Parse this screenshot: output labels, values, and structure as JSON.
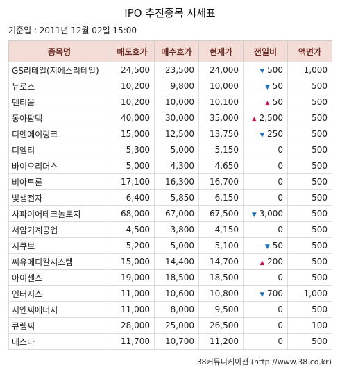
{
  "title": "IPO 추진종목 시세표",
  "date_line": "기준일 : 2011년 12월 02일 15:00",
  "headers": [
    "종목명",
    "매도호가",
    "매수호가",
    "현재가",
    "전일비",
    "액면가"
  ],
  "rows": [
    {
      "name": "GS리테일(지에스리테일)",
      "ask": "24,500",
      "bid": "23,500",
      "price": "24,000",
      "dir": "down",
      "change": "500",
      "par": "1,000"
    },
    {
      "name": "뉴로스",
      "ask": "10,200",
      "bid": "9,800",
      "price": "10,000",
      "dir": "down",
      "change": "50",
      "par": "500"
    },
    {
      "name": "덴티움",
      "ask": "10,200",
      "bid": "10,000",
      "price": "10,100",
      "dir": "up",
      "change": "50",
      "par": "500"
    },
    {
      "name": "동아팜텍",
      "ask": "40,000",
      "bid": "30,000",
      "price": "35,000",
      "dir": "up",
      "change": "2,500",
      "par": "500"
    },
    {
      "name": "디엔에이링크",
      "ask": "15,000",
      "bid": "12,500",
      "price": "13,750",
      "dir": "down",
      "change": "250",
      "par": "500"
    },
    {
      "name": "디엠티",
      "ask": "5,300",
      "bid": "5,000",
      "price": "5,150",
      "dir": "",
      "change": "0",
      "par": "500"
    },
    {
      "name": "바이오리더스",
      "ask": "5,000",
      "bid": "4,300",
      "price": "4,650",
      "dir": "",
      "change": "0",
      "par": "500"
    },
    {
      "name": "비아트론",
      "ask": "17,100",
      "bid": "16,300",
      "price": "16,700",
      "dir": "",
      "change": "0",
      "par": "500"
    },
    {
      "name": "빛샘전자",
      "ask": "6,400",
      "bid": "5,850",
      "price": "6,150",
      "dir": "",
      "change": "0",
      "par": "500"
    },
    {
      "name": "사파이어테크놀로지",
      "ask": "68,000",
      "bid": "67,000",
      "price": "67,500",
      "dir": "down",
      "change": "3,000",
      "par": "500"
    },
    {
      "name": "서암기계공업",
      "ask": "4,500",
      "bid": "3,800",
      "price": "4,150",
      "dir": "",
      "change": "0",
      "par": "500"
    },
    {
      "name": "시큐브",
      "ask": "5,200",
      "bid": "5,000",
      "price": "5,100",
      "dir": "down",
      "change": "50",
      "par": "500"
    },
    {
      "name": "씨유메디칼시스템",
      "ask": "15,000",
      "bid": "14,400",
      "price": "14,700",
      "dir": "up",
      "change": "200",
      "par": "500"
    },
    {
      "name": "아이센스",
      "ask": "19,000",
      "bid": "18,500",
      "price": "18,500",
      "dir": "",
      "change": "0",
      "par": "500"
    },
    {
      "name": "인터지스",
      "ask": "11,000",
      "bid": "10,600",
      "price": "10,800",
      "dir": "down",
      "change": "700",
      "par": "1,000"
    },
    {
      "name": "지엔씨에너지",
      "ask": "11,000",
      "bid": "8,000",
      "price": "9,500",
      "dir": "",
      "change": "0",
      "par": "500"
    },
    {
      "name": "큐렘씨",
      "ask": "28,000",
      "bid": "25,000",
      "price": "26,500",
      "dir": "",
      "change": "0",
      "par": "100"
    },
    {
      "name": "테스나",
      "ask": "11,700",
      "bid": "10,700",
      "price": "11,200",
      "dir": "",
      "change": "0",
      "par": "500"
    }
  ],
  "footer": "38커뮤니케이션 (http://www.38.co.kr)",
  "colors": {
    "header_bg": "#f4dcd7",
    "header_text": "#6b2b22",
    "up": "#c2185b",
    "down": "#1e73be"
  }
}
